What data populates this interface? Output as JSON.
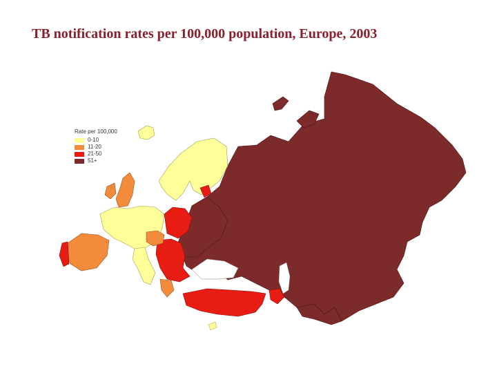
{
  "title": "TB notification rates per 100,000 population, Europe, 2003",
  "legend": {
    "title": "Rate per 100,000",
    "items": [
      {
        "label": "0-10",
        "color": "#ffff99"
      },
      {
        "label": "11-20",
        "color": "#f28c3c"
      },
      {
        "label": "21-50",
        "color": "#e81c12"
      },
      {
        "label": "51+",
        "color": "#7d2a2a"
      }
    ]
  },
  "colors": {
    "title": "#8b1f2b",
    "low": "#ffff99",
    "mid": "#f28c3c",
    "high": "#e81c12",
    "very_high": "#7d2a2a"
  }
}
